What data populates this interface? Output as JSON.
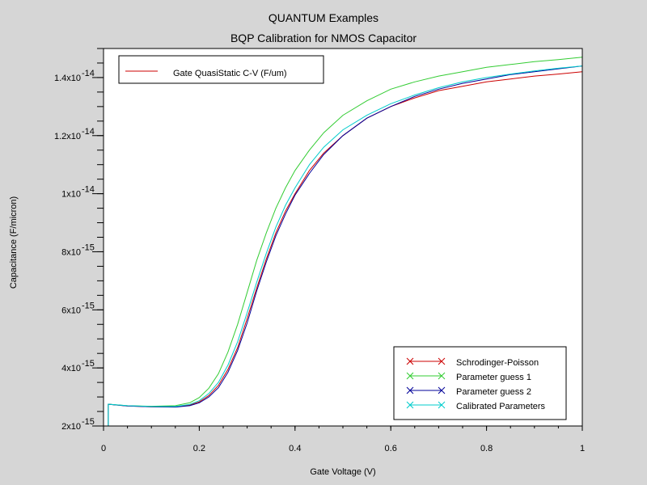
{
  "header": {
    "title": "QUANTUM Examples",
    "subtitle": "BQP Calibration for NMOS Capacitor"
  },
  "chart_data": {
    "type": "line",
    "title": "BQP Calibration for NMOS Capacitor",
    "xlabel": "Gate Voltage (V)",
    "ylabel": "Capacitance (F/micron)",
    "xlim": [
      0,
      1
    ],
    "ylim": [
      2e-15,
      1.5e-14
    ],
    "x_ticks": [
      {
        "value": 0,
        "label": "0"
      },
      {
        "value": 0.2,
        "label": "0.2"
      },
      {
        "value": 0.4,
        "label": "0.4"
      },
      {
        "value": 0.6,
        "label": "0.6"
      },
      {
        "value": 0.8,
        "label": "0.8"
      },
      {
        "value": 1,
        "label": "1"
      }
    ],
    "y_ticks": [
      {
        "value": 2e-15,
        "mantissa": "2x10",
        "exp": "-15"
      },
      {
        "value": 4e-15,
        "mantissa": "4x10",
        "exp": "-15"
      },
      {
        "value": 6e-15,
        "mantissa": "6x10",
        "exp": "-15"
      },
      {
        "value": 8e-15,
        "mantissa": "8x10",
        "exp": "-15"
      },
      {
        "value": 1e-14,
        "mantissa": "1x10",
        "exp": "-14"
      },
      {
        "value": 1.2e-14,
        "mantissa": "1.2x10",
        "exp": "-14"
      },
      {
        "value": 1.4e-14,
        "mantissa": "1.4x10",
        "exp": "-14"
      }
    ],
    "legend_top": {
      "position": "top-left",
      "entries": [
        {
          "label": "Gate QuasiStatic C-V (F/um)",
          "color": "#cc0000"
        }
      ]
    },
    "legend": {
      "position": "bottom-right",
      "entries": [
        {
          "label": "Schrodinger-Poisson",
          "color": "#cc0000"
        },
        {
          "label": "Parameter guess 1",
          "color": "#33cc33"
        },
        {
          "label": "Parameter guess 2",
          "color": "#000099"
        },
        {
          "label": "Calibrated Parameters",
          "color": "#00cccc"
        }
      ]
    },
    "series": [
      {
        "name": "Schrodinger-Poisson",
        "color": "#cc0000",
        "x": [
          0.01,
          0.05,
          0.1,
          0.15,
          0.18,
          0.2,
          0.22,
          0.24,
          0.26,
          0.28,
          0.3,
          0.32,
          0.34,
          0.36,
          0.38,
          0.4,
          0.43,
          0.46,
          0.5,
          0.55,
          0.6,
          0.65,
          0.7,
          0.75,
          0.8,
          0.85,
          0.9,
          0.95,
          1.0
        ],
        "y": [
          2.75e-15,
          2.69e-15,
          2.66e-15,
          2.66e-15,
          2.72e-15,
          2.83e-15,
          3.05e-15,
          3.4e-15,
          3.95e-15,
          4.7e-15,
          5.7e-15,
          6.75e-15,
          7.75e-15,
          8.65e-15,
          9.4e-15,
          1e-14,
          1.08e-14,
          1.14e-14,
          1.2e-14,
          1.26e-14,
          1.3e-14,
          1.33e-14,
          1.355e-14,
          1.37e-14,
          1.385e-14,
          1.395e-14,
          1.405e-14,
          1.412e-14,
          1.42e-14
        ]
      },
      {
        "name": "Parameter guess 1",
        "color": "#33cc33",
        "x": [
          0.01,
          0.05,
          0.1,
          0.15,
          0.18,
          0.2,
          0.22,
          0.24,
          0.26,
          0.28,
          0.3,
          0.32,
          0.34,
          0.36,
          0.38,
          0.4,
          0.43,
          0.46,
          0.5,
          0.55,
          0.6,
          0.65,
          0.7,
          0.75,
          0.8,
          0.85,
          0.9,
          0.95,
          1.0
        ],
        "y": [
          2.75e-15,
          2.7e-15,
          2.68e-15,
          2.7e-15,
          2.8e-15,
          2.98e-15,
          3.3e-15,
          3.8e-15,
          4.55e-15,
          5.5e-15,
          6.6e-15,
          7.7e-15,
          8.65e-15,
          9.5e-15,
          1.02e-14,
          1.08e-14,
          1.15e-14,
          1.21e-14,
          1.27e-14,
          1.32e-14,
          1.36e-14,
          1.385e-14,
          1.405e-14,
          1.42e-14,
          1.435e-14,
          1.445e-14,
          1.455e-14,
          1.462e-14,
          1.47e-14
        ]
      },
      {
        "name": "Parameter guess 2",
        "color": "#000099",
        "x": [
          0.01,
          0.05,
          0.1,
          0.15,
          0.18,
          0.2,
          0.22,
          0.24,
          0.26,
          0.28,
          0.3,
          0.32,
          0.34,
          0.36,
          0.38,
          0.4,
          0.43,
          0.46,
          0.5,
          0.55,
          0.6,
          0.65,
          0.7,
          0.75,
          0.8,
          0.85,
          0.9,
          0.95,
          1.0
        ],
        "y": [
          2.75e-15,
          2.69e-15,
          2.66e-15,
          2.65e-15,
          2.7e-15,
          2.8e-15,
          3e-15,
          3.32e-15,
          3.85e-15,
          4.6e-15,
          5.55e-15,
          6.65e-15,
          7.65e-15,
          8.55e-15,
          9.3e-15,
          9.95e-15,
          1.07e-14,
          1.135e-14,
          1.2e-14,
          1.26e-14,
          1.3e-14,
          1.335e-14,
          1.36e-14,
          1.38e-14,
          1.395e-14,
          1.41e-14,
          1.42e-14,
          1.43e-14,
          1.44e-14
        ]
      },
      {
        "name": "Calibrated Parameters",
        "color": "#00cccc",
        "x": [
          0.01,
          0.05,
          0.1,
          0.15,
          0.18,
          0.2,
          0.22,
          0.24,
          0.26,
          0.28,
          0.3,
          0.32,
          0.34,
          0.36,
          0.38,
          0.4,
          0.43,
          0.46,
          0.5,
          0.55,
          0.6,
          0.65,
          0.7,
          0.75,
          0.8,
          0.85,
          0.9,
          0.95,
          1.0
        ],
        "y": [
          2.75e-15,
          2.7e-15,
          2.67e-15,
          2.67e-15,
          2.74e-15,
          2.87e-15,
          3.12e-15,
          3.5e-15,
          4.1e-15,
          4.9e-15,
          5.9e-15,
          6.95e-15,
          7.95e-15,
          8.85e-15,
          9.6e-15,
          1.02e-14,
          1.1e-14,
          1.16e-14,
          1.22e-14,
          1.27e-14,
          1.31e-14,
          1.34e-14,
          1.365e-14,
          1.385e-14,
          1.4e-14,
          1.412e-14,
          1.423e-14,
          1.432e-14,
          1.44e-14
        ]
      }
    ]
  }
}
